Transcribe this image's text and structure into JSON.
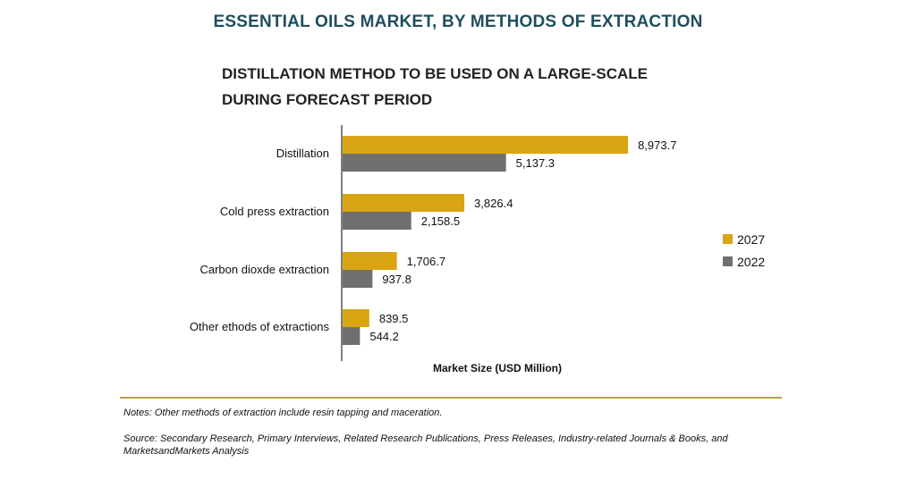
{
  "title": "ESSENTIAL OILS MARKET, BY METHODS OF EXTRACTION",
  "subtitle_line1": "DISTILLATION METHOD TO BE USED ON A LARGE-SCALE",
  "subtitle_line2": "DURING FORECAST PERIOD",
  "notes": "Notes: Other methods of extraction include resin tapping and maceration.",
  "source": "Source: Secondary Research, Primary Interviews, Related Research Publications, Press Releases, Industry-related Journals & Books, and MarketsandMarkets Analysis",
  "colors": {
    "series_2027": "#d9a512",
    "series_2022": "#6f6f6f",
    "separator": "#b8a24a",
    "axis": "#555555"
  },
  "chart_data": {
    "type": "bar",
    "orientation": "horizontal",
    "categories": [
      "Distillation",
      "Cold press extraction",
      "Carbon dioxde extraction",
      "Other ethods of extractions"
    ],
    "series": [
      {
        "name": "2027",
        "values": [
          8973.7,
          3826.4,
          1706.7,
          839.5
        ],
        "labels": [
          "8,973.7",
          "3,826.4",
          "1,706.7",
          "839.5"
        ]
      },
      {
        "name": "2022",
        "values": [
          5137.3,
          2158.5,
          937.8,
          544.2
        ],
        "labels": [
          "5,137.3",
          "2,158.5",
          "937.8",
          "544.2"
        ]
      }
    ],
    "xlabel": "Market Size (USD Million)",
    "ylabel": "",
    "legend_position": "right",
    "grid": false,
    "xlim": [
      0,
      9000
    ]
  }
}
